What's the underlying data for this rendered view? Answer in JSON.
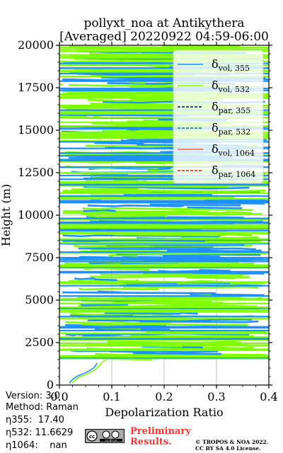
{
  "chart_data": {
    "type": "line",
    "title": [
      "pollyxt_noa at Antikythera",
      "[Averaged] 20220922 04:59-06:00"
    ],
    "xlabel": "Depolarization Ratio",
    "ylabel": "Height (m)",
    "xlim": [
      0.0,
      0.4
    ],
    "ylim": [
      0,
      20000
    ],
    "xticks": [
      "0.0",
      "0.1",
      "0.2",
      "0.3",
      "0.4"
    ],
    "yticks": [
      "0",
      "2500",
      "5000",
      "7500",
      "10000",
      "12500",
      "15000",
      "17500",
      "20000"
    ],
    "grid": true,
    "legend_position": "top-right",
    "legend": [
      {
        "base": "δ",
        "sub": "vol, 355",
        "color": "#1e90ff",
        "style": "solid"
      },
      {
        "base": "δ",
        "sub": "vol, 532",
        "color": "#80ff00",
        "style": "solid"
      },
      {
        "base": "δ",
        "sub": "par, 355",
        "color": "#00008b",
        "style": "dashed"
      },
      {
        "base": "δ",
        "sub": "par, 532",
        "color": "#008b45",
        "style": "dashed"
      },
      {
        "base": "δ",
        "sub": "vol, 1064",
        "color": "#ff5a3c",
        "style": "solid"
      },
      {
        "base": "δ",
        "sub": "par, 1064",
        "color": "#dc143c",
        "style": "dashed"
      }
    ],
    "series": [
      {
        "name": "δvol,355",
        "color": "#1e90ff",
        "lower_profile": {
          "x": [
            0.02,
            0.021,
            0.024,
            0.028,
            0.033,
            0.04,
            0.048,
            0.055,
            0.06,
            0.065,
            0.068,
            0.07,
            0.072
          ],
          "y": [
            100,
            200,
            300,
            400,
            500,
            600,
            700,
            800,
            900,
            1000,
            1100,
            1200,
            1300
          ]
        },
        "noisy_above_m": 1400
      },
      {
        "name": "δvol,532",
        "color": "#80ff00",
        "lower_profile": {
          "x": [
            0.025,
            0.027,
            0.03,
            0.034,
            0.04,
            0.048,
            0.056,
            0.063,
            0.068,
            0.072,
            0.075,
            0.078,
            0.08,
            0.09
          ],
          "y": [
            100,
            200,
            300,
            400,
            500,
            600,
            700,
            800,
            900,
            1000,
            1100,
            1200,
            1300,
            1500
          ]
        },
        "noisy_above_m": 1500
      }
    ]
  },
  "info": {
    "version": "Version: 3.0",
    "method": "Method: Raman",
    "eta355": "η355:  17.40",
    "eta532": "η532: 11.6629",
    "eta1064": "η1064:    nan"
  },
  "badge": {
    "text": "CC BY SA"
  },
  "preliminary": [
    "Preliminary",
    "Results."
  ],
  "copyright": [
    "© TROPOS & NOA 2022.",
    "CC BY SA 4.0 License."
  ]
}
